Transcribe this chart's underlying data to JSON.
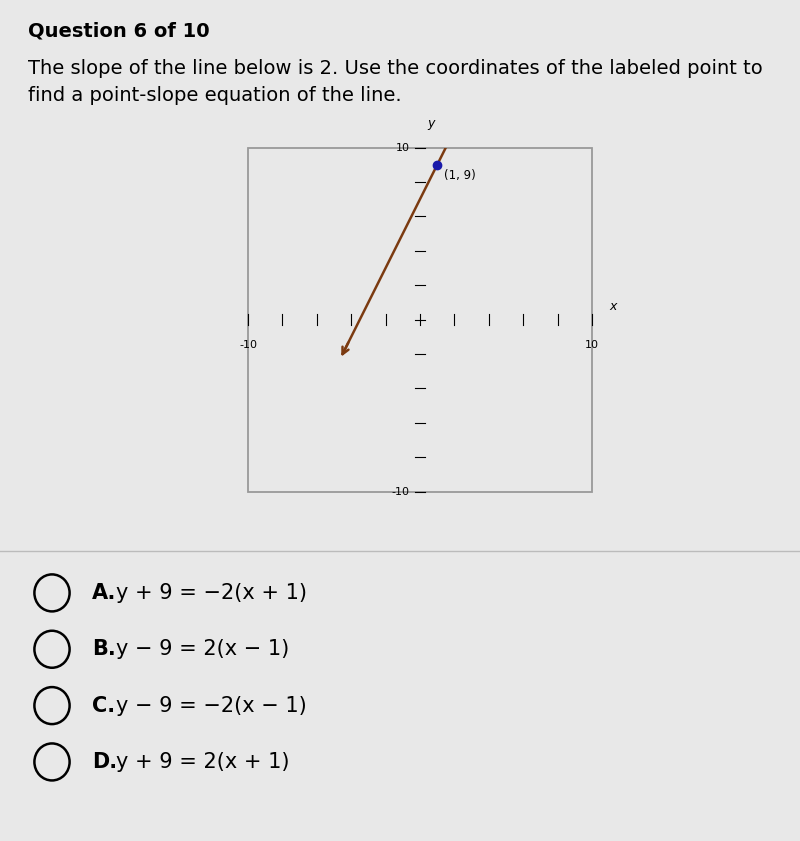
{
  "background_color": "#e8e8e8",
  "question_text": "Question 6 of 10",
  "body_text_line1": "The slope of the line below is 2. Use the coordinates of the labeled point to",
  "body_text_line2": "find a point-slope equation of the line.",
  "graph": {
    "xlim": [
      -10,
      10
    ],
    "ylim": [
      -10,
      10
    ],
    "labeled_point": [
      1,
      9
    ],
    "point_label": "(1, 9)",
    "slope": 2,
    "line_x_start": -4.5,
    "line_x_end": 2.3,
    "line_color": "#7B3A10",
    "point_color": "#1a1aaa",
    "graph_bg": "#e8e8e8",
    "box_color": "#999999"
  },
  "choices": [
    {
      "letter": "A",
      "text_bold": "A.",
      "equation": "y + 9 = −2(x + 1)"
    },
    {
      "letter": "B",
      "text_bold": "B.",
      "equation": "y − 9 = 2(x − 1)"
    },
    {
      "letter": "C",
      "text_bold": "C.",
      "equation": "y − 9 = −2(x − 1)"
    },
    {
      "letter": "D",
      "text_bold": "D.",
      "equation": "y + 9 = 2(x + 1)"
    }
  ],
  "choice_fontsize": 15,
  "question_fontsize": 14,
  "title_fontsize": 14,
  "separator_y": 0.345
}
